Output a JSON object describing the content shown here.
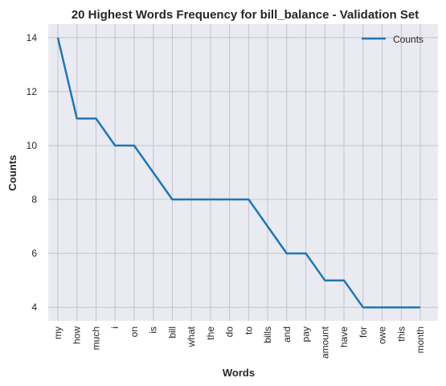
{
  "chart_data": {
    "type": "line",
    "title": "20 Highest Words Frequency for bill_balance - Validation Set",
    "xlabel": "Words",
    "ylabel": "Counts",
    "categories": [
      "my",
      "how",
      "much",
      "i",
      "on",
      "is",
      "bill",
      "what",
      "the",
      "do",
      "to",
      "bills",
      "and",
      "pay",
      "amount",
      "have",
      "for",
      "owe",
      "this",
      "month"
    ],
    "series": [
      {
        "name": "Counts",
        "values": [
          14,
          11,
          11,
          10,
          10,
          9,
          8,
          8,
          8,
          8,
          8,
          7,
          6,
          6,
          5,
          5,
          4,
          4,
          4,
          4
        ],
        "color": "#1f77b4"
      }
    ],
    "yticks": [
      4,
      6,
      8,
      10,
      12,
      14
    ],
    "ylim": [
      3.5,
      14.5
    ],
    "grid": true,
    "legend_position": "top-right",
    "background": "#eaeaf2"
  }
}
